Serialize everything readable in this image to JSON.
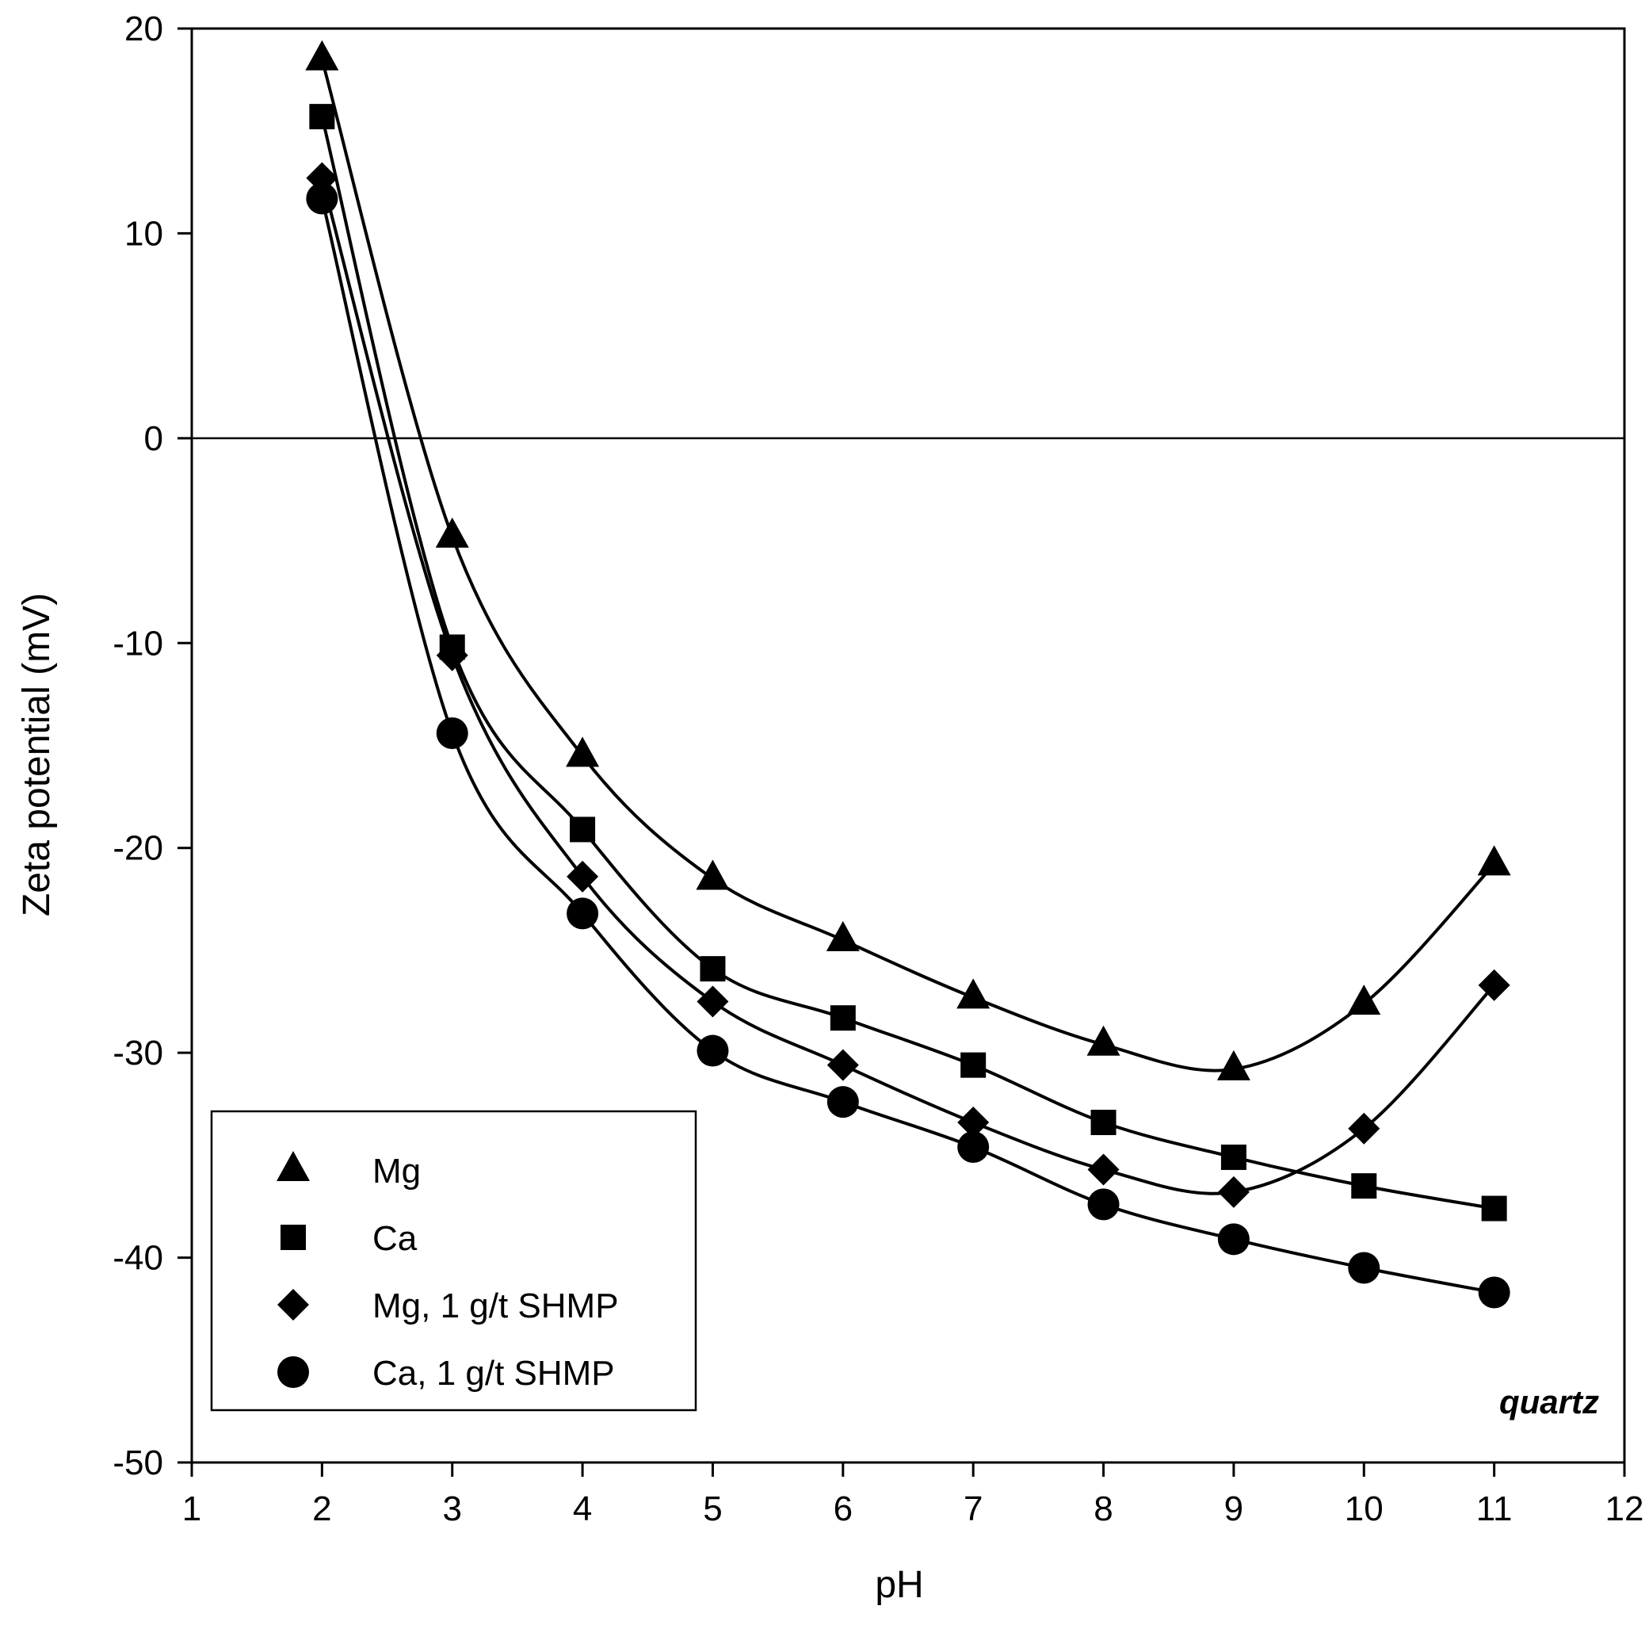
{
  "chart_data": {
    "type": "scatter",
    "title": "",
    "xlabel": "pH",
    "ylabel": "Zeta potential (mV)",
    "xlim": [
      1,
      12
    ],
    "ylim": [
      -50,
      20
    ],
    "xticks": [
      "1",
      "2",
      "3",
      "4",
      "5",
      "6",
      "7",
      "8",
      "9",
      "10",
      "11",
      "12"
    ],
    "yticks": [
      "20",
      "10",
      "0",
      "-10",
      "-20",
      "-30",
      "-40",
      "-50"
    ],
    "x": [
      2,
      3,
      4,
      5,
      6,
      7,
      8,
      9,
      10,
      11
    ],
    "series": [
      {
        "name": "Mg",
        "marker": "triangle",
        "values": [
          18.5,
          -4.8,
          -15.5,
          -21.5,
          -24.5,
          -27.3,
          -29.6,
          -30.8,
          -27.6,
          -20.8
        ]
      },
      {
        "name": "Ca",
        "marker": "square",
        "values": [
          15.7,
          -10.2,
          -19.1,
          -25.9,
          -28.3,
          -30.6,
          -33.4,
          -35.1,
          -36.5,
          -37.6
        ]
      },
      {
        "name": "Mg, 1 g/t SHMP",
        "marker": "diamond",
        "values": [
          12.7,
          -10.6,
          -21.4,
          -27.5,
          -30.6,
          -33.4,
          -35.7,
          -36.8,
          -33.7,
          -26.7
        ]
      },
      {
        "name": "Ca, 1 g/t SHMP",
        "marker": "circle",
        "values": [
          11.7,
          -14.4,
          -23.2,
          -29.9,
          -32.4,
          -34.6,
          -37.4,
          -39.1,
          -40.5,
          -41.7
        ]
      }
    ],
    "annotation": "quartz",
    "legend_position": "bottom-left",
    "grid": false,
    "color": "#000000"
  }
}
